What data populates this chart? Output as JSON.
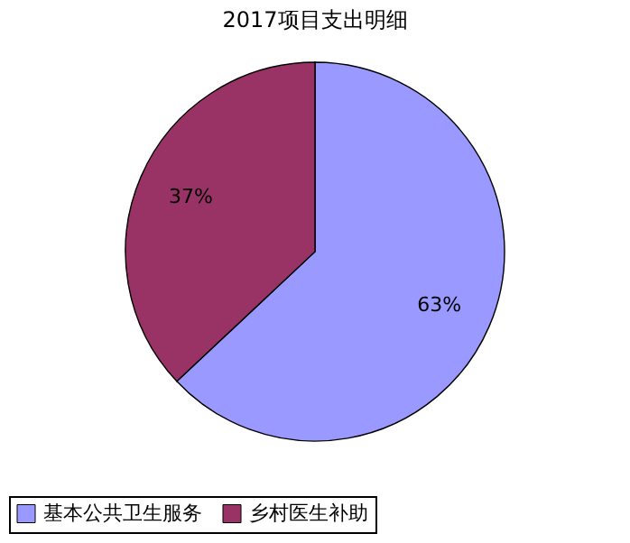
{
  "chart_data": {
    "type": "pie",
    "title": "2017项目支出明细",
    "categories": [
      "基本公共卫生服务",
      "乡村医生补助"
    ],
    "values": [
      63,
      37
    ],
    "colors": [
      "#9999ff",
      "#993366"
    ],
    "value_labels": [
      "63%",
      "37%"
    ],
    "legend": "bottom"
  }
}
